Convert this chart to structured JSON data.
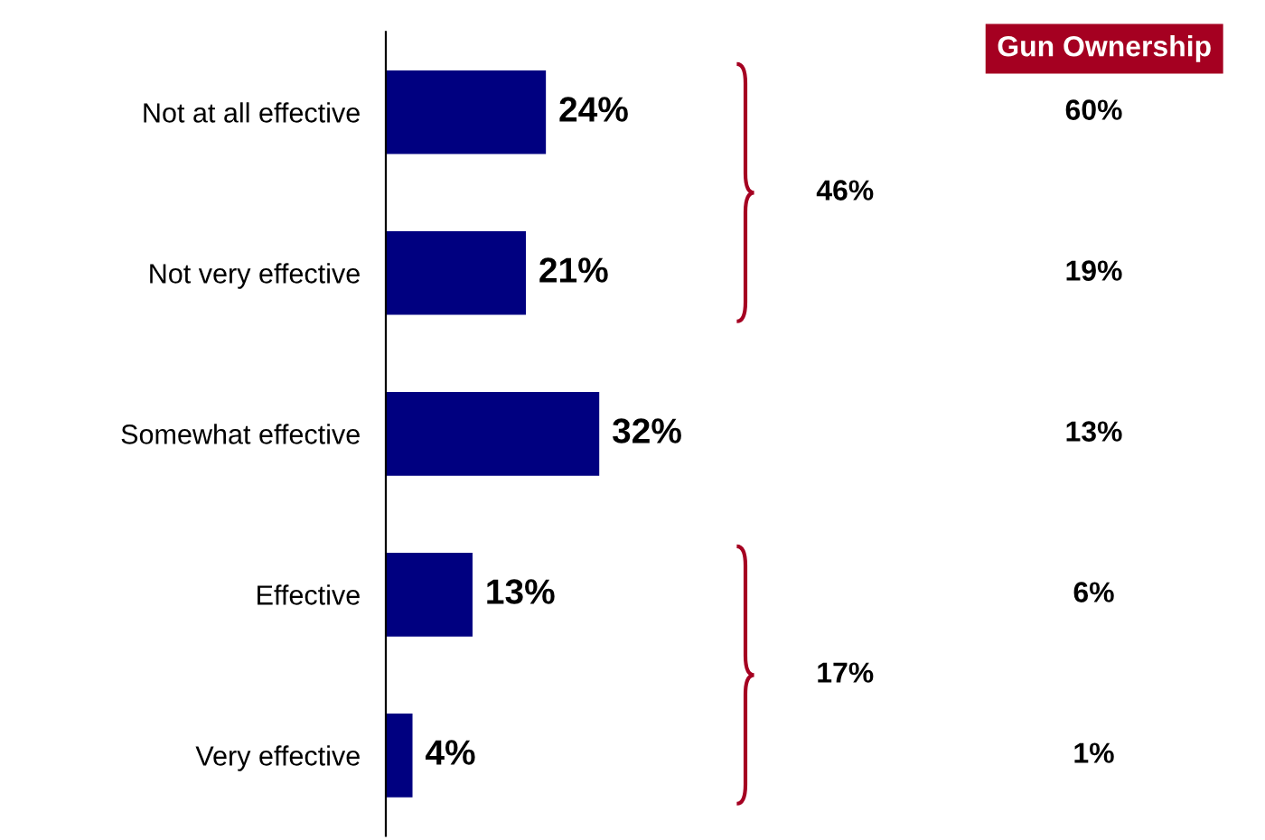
{
  "chart_data": {
    "type": "bar",
    "orientation": "horizontal",
    "categories": [
      "Not at all effective",
      "Not very effective",
      "Somewhat effective",
      "Effective",
      "Very effective"
    ],
    "values": [
      24,
      21,
      32,
      13,
      4
    ],
    "value_labels": [
      "24%",
      "21%",
      "32%",
      "13%",
      "4%"
    ],
    "color": "#000080",
    "grid": false,
    "legend": false,
    "tick_labels": "y",
    "annotations": [
      "Gun Ownership",
      "60%",
      "19%",
      "13%",
      "6%",
      "1%",
      "46%",
      "17%"
    ]
  }
}
